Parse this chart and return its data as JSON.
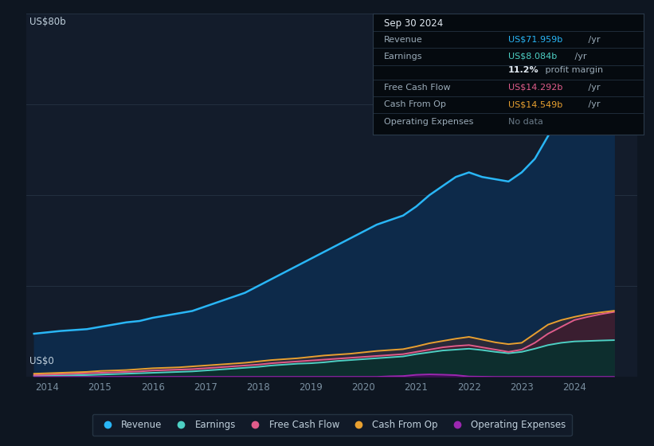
{
  "background_color": "#0e1621",
  "plot_bg_color": "#131c2b",
  "ylabel_top": "US$80b",
  "ylabel_bottom": "US$0",
  "years": [
    2013.75,
    2014.0,
    2014.25,
    2014.5,
    2014.75,
    2015.0,
    2015.25,
    2015.5,
    2015.75,
    2016.0,
    2016.25,
    2016.5,
    2016.75,
    2017.0,
    2017.25,
    2017.5,
    2017.75,
    2018.0,
    2018.25,
    2018.5,
    2018.75,
    2019.0,
    2019.25,
    2019.5,
    2019.75,
    2020.0,
    2020.25,
    2020.5,
    2020.75,
    2021.0,
    2021.25,
    2021.5,
    2021.75,
    2022.0,
    2022.25,
    2022.5,
    2022.75,
    2023.0,
    2023.25,
    2023.5,
    2023.75,
    2024.0,
    2024.25,
    2024.5,
    2024.75
  ],
  "revenue": [
    9.5,
    9.8,
    10.1,
    10.3,
    10.5,
    11.0,
    11.5,
    12.0,
    12.3,
    13.0,
    13.5,
    14.0,
    14.5,
    15.5,
    16.5,
    17.5,
    18.5,
    20.0,
    21.5,
    23.0,
    24.5,
    26.0,
    27.5,
    29.0,
    30.5,
    32.0,
    33.5,
    34.5,
    35.5,
    37.5,
    40.0,
    42.0,
    44.0,
    45.0,
    44.0,
    43.5,
    43.0,
    45.0,
    48.0,
    53.0,
    58.0,
    63.0,
    67.0,
    70.0,
    71.959
  ],
  "earnings": [
    0.2,
    0.25,
    0.3,
    0.35,
    0.4,
    0.5,
    0.6,
    0.7,
    0.8,
    0.9,
    1.0,
    1.1,
    1.2,
    1.4,
    1.6,
    1.8,
    2.0,
    2.2,
    2.5,
    2.7,
    2.9,
    3.0,
    3.2,
    3.5,
    3.7,
    3.9,
    4.1,
    4.3,
    4.5,
    5.0,
    5.4,
    5.8,
    6.0,
    6.2,
    5.9,
    5.5,
    5.2,
    5.5,
    6.2,
    7.0,
    7.5,
    7.8,
    7.9,
    8.0,
    8.084
  ],
  "free_cash_flow": [
    0.4,
    0.5,
    0.6,
    0.7,
    0.8,
    0.9,
    1.0,
    1.1,
    1.2,
    1.4,
    1.5,
    1.6,
    1.7,
    1.9,
    2.1,
    2.3,
    2.5,
    2.7,
    3.0,
    3.2,
    3.4,
    3.6,
    3.8,
    4.0,
    4.2,
    4.4,
    4.6,
    4.8,
    5.0,
    5.5,
    6.0,
    6.5,
    6.8,
    7.0,
    6.5,
    6.0,
    5.5,
    6.0,
    7.5,
    9.5,
    11.0,
    12.5,
    13.2,
    13.8,
    14.292
  ],
  "cash_from_op": [
    0.7,
    0.8,
    0.9,
    1.0,
    1.1,
    1.3,
    1.4,
    1.5,
    1.7,
    1.9,
    2.0,
    2.1,
    2.3,
    2.5,
    2.7,
    2.9,
    3.1,
    3.4,
    3.7,
    3.9,
    4.1,
    4.4,
    4.7,
    4.9,
    5.1,
    5.4,
    5.7,
    5.9,
    6.1,
    6.7,
    7.4,
    7.9,
    8.4,
    8.8,
    8.2,
    7.6,
    7.2,
    7.5,
    9.5,
    11.5,
    12.5,
    13.2,
    13.8,
    14.2,
    14.549
  ],
  "op_expenses": [
    0.0,
    0.0,
    0.0,
    0.0,
    0.0,
    0.0,
    0.0,
    0.0,
    0.0,
    0.0,
    0.0,
    0.0,
    0.0,
    0.0,
    0.0,
    0.0,
    0.0,
    0.0,
    0.0,
    0.0,
    0.0,
    0.0,
    0.0,
    0.0,
    0.0,
    0.0,
    0.0,
    0.12,
    0.18,
    0.45,
    0.55,
    0.48,
    0.38,
    0.08,
    0.04,
    0.0,
    0.0,
    0.0,
    0.0,
    0.0,
    0.0,
    0.0,
    0.0,
    0.0,
    0.0
  ],
  "revenue_color": "#29b6f6",
  "earnings_color": "#4dd0c4",
  "free_cash_flow_color": "#e05c8a",
  "cash_from_op_color": "#e8a030",
  "op_expenses_color": "#9c27b0",
  "xlim": [
    2013.6,
    2025.2
  ],
  "ylim": [
    0,
    80
  ],
  "xticks": [
    2014,
    2015,
    2016,
    2017,
    2018,
    2019,
    2020,
    2021,
    2022,
    2023,
    2024
  ],
  "gridline_color": "#233040",
  "gridline_values": [
    20,
    40,
    60,
    80
  ],
  "tooltip": {
    "date": "Sep 30 2024",
    "revenue_label": "Revenue",
    "revenue_value": "US$71.959b",
    "revenue_unit": " /yr",
    "revenue_color": "#29b6f6",
    "earnings_label": "Earnings",
    "earnings_value": "US$8.084b",
    "earnings_unit": " /yr",
    "earnings_color": "#4dd0c4",
    "margin_pct": "11.2%",
    "margin_text": " profit margin",
    "fcf_label": "Free Cash Flow",
    "fcf_value": "US$14.292b",
    "fcf_unit": " /yr",
    "fcf_color": "#e05c8a",
    "cfo_label": "Cash From Op",
    "cfo_value": "US$14.549b",
    "cfo_unit": " /yr",
    "cfo_color": "#e8a030",
    "opex_label": "Operating Expenses",
    "opex_value": "No data",
    "bg": "#050a0f",
    "border_color": "#2a3a4a",
    "text_color": "#9aabb8",
    "title_color": "#e0e8f0"
  },
  "legend_items": [
    {
      "label": "Revenue",
      "color": "#29b6f6"
    },
    {
      "label": "Earnings",
      "color": "#4dd0c4"
    },
    {
      "label": "Free Cash Flow",
      "color": "#e05c8a"
    },
    {
      "label": "Cash From Op",
      "color": "#e8a030"
    },
    {
      "label": "Operating Expenses",
      "color": "#9c27b0"
    }
  ]
}
